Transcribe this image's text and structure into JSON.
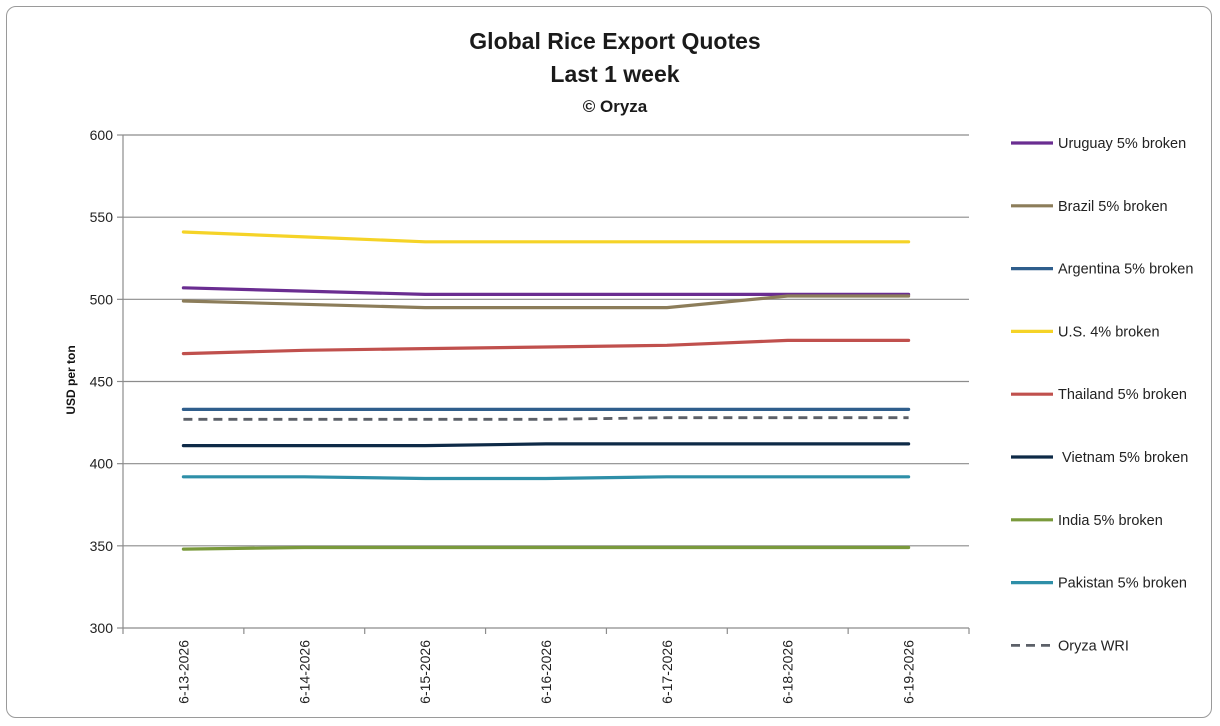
{
  "chart_data": {
    "type": "line",
    "title_lines": [
      "Global Rice Export Quotes",
      "Last 1 week",
      "© Oryza"
    ],
    "xlabel": "",
    "ylabel": "USD per ton",
    "ylim": [
      300,
      600
    ],
    "yticks": [
      300,
      350,
      400,
      450,
      500,
      550,
      600
    ],
    "grid": "horizontal",
    "legend_position": "right",
    "categories": [
      "6-13-2026",
      "6-14-2026",
      "6-15-2026",
      "6-16-2026",
      "6-17-2026",
      "6-18-2026",
      "6-19-2026"
    ],
    "series": [
      {
        "name": "Uruguay 5% broken",
        "color": "#6a2d91",
        "dash": false,
        "values": [
          507,
          505,
          503,
          503,
          503,
          503,
          503
        ]
      },
      {
        "name": "Brazil 5% broken",
        "color": "#8c7d5a",
        "dash": false,
        "values": [
          499,
          497,
          495,
          495,
          495,
          502,
          502
        ]
      },
      {
        "name": "Argentina 5% broken",
        "color": "#2f5e8c",
        "dash": false,
        "values": [
          433,
          433,
          433,
          433,
          433,
          433,
          433
        ]
      },
      {
        "name": "U.S. 4% broken",
        "color": "#f5d327",
        "dash": false,
        "values": [
          541,
          538,
          535,
          535,
          535,
          535,
          535
        ]
      },
      {
        "name": "Thailand 5% broken",
        "color": "#c0504d",
        "dash": false,
        "values": [
          467,
          469,
          470,
          471,
          472,
          475,
          475
        ]
      },
      {
        "name": " Vietnam 5% broken",
        "color": "#0e2a47",
        "dash": false,
        "values": [
          411,
          411,
          411,
          412,
          412,
          412,
          412
        ]
      },
      {
        "name": "India 5% broken",
        "color": "#7a9a3c",
        "dash": false,
        "values": [
          348,
          349,
          349,
          349,
          349,
          349,
          349
        ]
      },
      {
        "name": "Pakistan 5% broken",
        "color": "#2e8fa8",
        "dash": false,
        "values": [
          392,
          392,
          391,
          391,
          392,
          392,
          392
        ]
      },
      {
        "name": "Oryza WRI",
        "color": "#5c6068",
        "dash": true,
        "values": [
          427,
          427,
          427,
          427,
          428,
          428,
          428
        ]
      }
    ]
  }
}
